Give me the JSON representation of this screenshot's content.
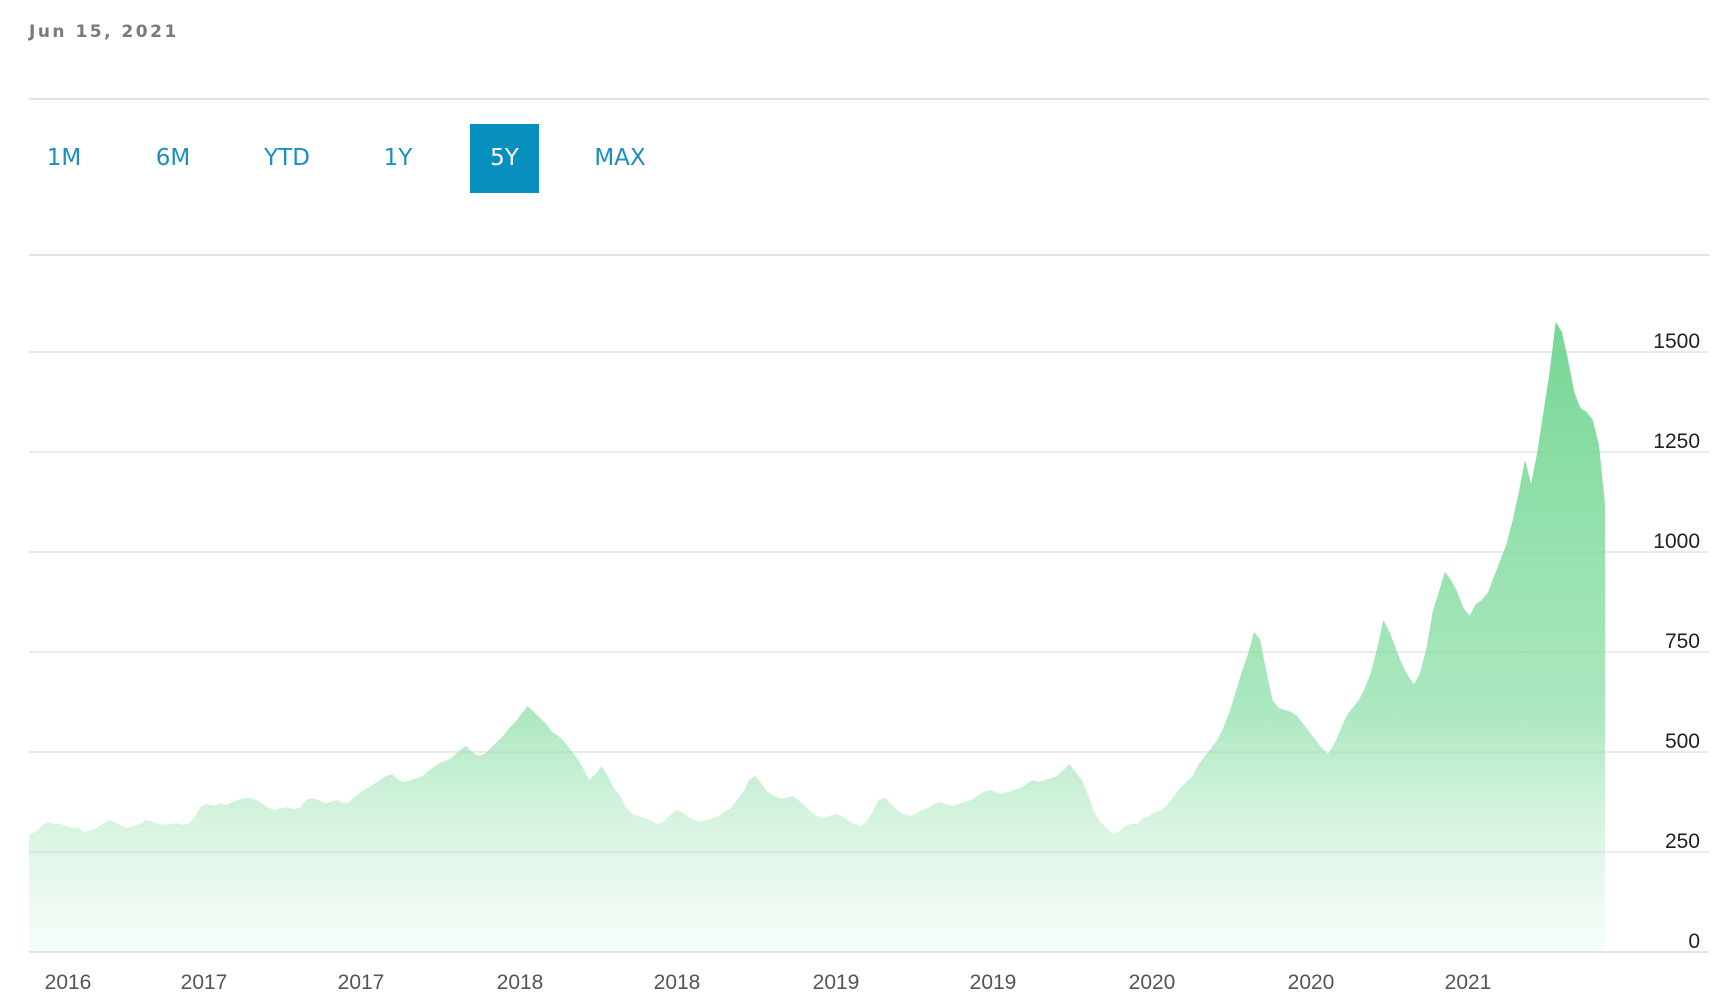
{
  "header": {
    "date": "Jun 15, 2021"
  },
  "range_tabs": [
    {
      "label": "1M",
      "active": false
    },
    {
      "label": "6M",
      "active": false
    },
    {
      "label": "YTD",
      "active": false
    },
    {
      "label": "1Y",
      "active": false
    },
    {
      "label": "5Y",
      "active": true
    },
    {
      "label": "MAX",
      "active": false
    }
  ],
  "colors": {
    "accent": "#078fbd",
    "area_fill": "#7bd89a",
    "grid": "#e4e4e4"
  },
  "chart_data": {
    "type": "area",
    "title": "",
    "xlabel": "",
    "ylabel": "",
    "ylim": [
      0,
      1750
    ],
    "yticks": [
      0,
      250,
      500,
      750,
      1000,
      1250,
      1500
    ],
    "xtick_labels": [
      "2016",
      "2017",
      "2017",
      "2018",
      "2018",
      "2019",
      "2019",
      "2020",
      "2020",
      "2021"
    ],
    "grid": true,
    "y_axis_side": "right",
    "series": [
      {
        "values": [
          295,
          300,
          315,
          325,
          320,
          320,
          315,
          310,
          312,
          300,
          305,
          310,
          320,
          330,
          325,
          315,
          310,
          315,
          320,
          330,
          325,
          320,
          318,
          320,
          322,
          318,
          320,
          340,
          365,
          370,
          365,
          372,
          368,
          375,
          380,
          385,
          385,
          380,
          370,
          360,
          355,
          360,
          362,
          358,
          360,
          380,
          385,
          380,
          372,
          375,
          380,
          372,
          375,
          390,
          400,
          410,
          420,
          430,
          440,
          445,
          430,
          425,
          430,
          435,
          440,
          455,
          465,
          475,
          480,
          490,
          505,
          515,
          500,
          490,
          495,
          510,
          525,
          540,
          560,
          575,
          595,
          615,
          600,
          585,
          570,
          550,
          540,
          525,
          505,
          485,
          460,
          430,
          445,
          465,
          440,
          410,
          390,
          360,
          345,
          340,
          335,
          330,
          320,
          325,
          340,
          355,
          350,
          340,
          330,
          325,
          330,
          335,
          340,
          350,
          360,
          380,
          400,
          430,
          440,
          420,
          400,
          390,
          385,
          385,
          390,
          380,
          365,
          350,
          340,
          335,
          340,
          345,
          340,
          330,
          320,
          315,
          325,
          350,
          380,
          385,
          370,
          355,
          345,
          340,
          345,
          355,
          360,
          370,
          375,
          370,
          365,
          370,
          375,
          380,
          390,
          400,
          405,
          400,
          395,
          400,
          405,
          410,
          420,
          430,
          425,
          430,
          435,
          440,
          455,
          470,
          450,
          430,
          395,
          350,
          325,
          310,
          295,
          300,
          315,
          320,
          320,
          335,
          340,
          350,
          355,
          370,
          390,
          410,
          425,
          440,
          470,
          490,
          510,
          530,
          560,
          600,
          650,
          700,
          745,
          800,
          780,
          700,
          630,
          610,
          605,
          600,
          590,
          570,
          550,
          530,
          510,
          495,
          520,
          555,
          590,
          610,
          630,
          660,
          700,
          760,
          830,
          800,
          760,
          720,
          690,
          670,
          700,
          760,
          850,
          900,
          950,
          930,
          900,
          860,
          840,
          870,
          880,
          900,
          940,
          980,
          1020,
          1080,
          1150,
          1230,
          1170,
          1250,
          1350,
          1450,
          1575,
          1550,
          1480,
          1400,
          1360,
          1350,
          1330,
          1270,
          1120
        ]
      }
    ]
  }
}
